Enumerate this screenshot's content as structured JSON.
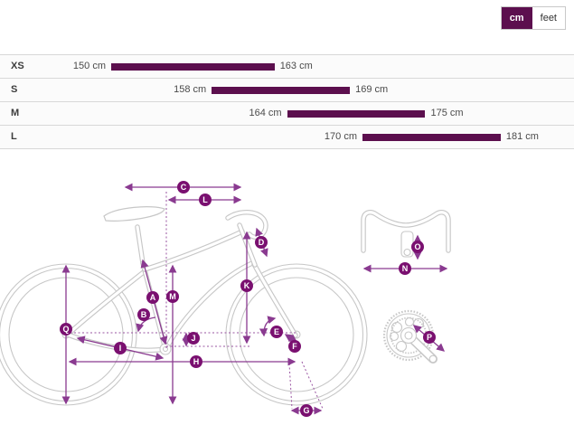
{
  "unit_toggle": {
    "options": [
      {
        "label": "cm",
        "active": true
      },
      {
        "label": "feet",
        "active": false
      }
    ]
  },
  "size_chart": {
    "unit": "cm",
    "rows": [
      {
        "size": "XS",
        "min": 150,
        "max": 163,
        "min_label": "150 cm",
        "max_label": "163 cm"
      },
      {
        "size": "S",
        "min": 158,
        "max": 169,
        "min_label": "158 cm",
        "max_label": "169 cm"
      },
      {
        "size": "M",
        "min": 164,
        "max": 175,
        "min_label": "164 cm",
        "max_label": "175 cm"
      },
      {
        "size": "L",
        "min": 170,
        "max": 181,
        "min_label": "170 cm",
        "max_label": "181 cm"
      }
    ]
  },
  "diagram": {
    "labels": [
      "A",
      "B",
      "C",
      "D",
      "E",
      "F",
      "G",
      "H",
      "I",
      "J",
      "K",
      "L",
      "M",
      "N",
      "O",
      "P",
      "Q"
    ]
  },
  "colors": {
    "accent_dark": "#5c0f4e",
    "label_circle": "#7a1070",
    "arrow": "#8a3a90",
    "drawing_gray": "#c7c7c7"
  }
}
